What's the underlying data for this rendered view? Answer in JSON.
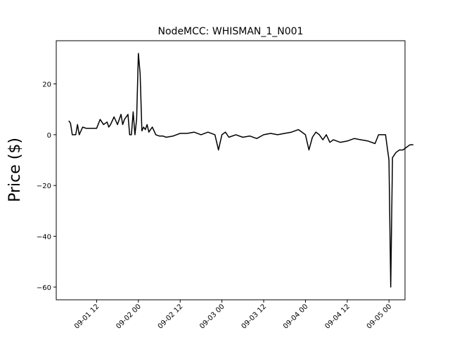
{
  "chart_data": {
    "type": "line",
    "title": "NodeMCC: WHISMAN_1_N001",
    "xlabel": "",
    "ylabel": "Price ($)",
    "x_axis_kind": "datetime",
    "xlim": [
      "2022-09-01 00:24",
      "2022-09-05 04:36"
    ],
    "ylim": [
      -65,
      37
    ],
    "x_ticks": [
      "09-01 12",
      "09-02 00",
      "09-02 12",
      "09-03 00",
      "09-03 12",
      "09-04 00",
      "09-04 12",
      "09-05 00"
    ],
    "y_ticks": [
      20,
      0,
      -20,
      -40,
      -60
    ],
    "y_tick_labels": [
      "20",
      "0",
      "−20",
      "−40",
      "−60"
    ],
    "grid": false,
    "legend": "none",
    "line_color": "#000000",
    "series": [
      {
        "x": [
          "2022-09-01 04:00",
          "2022-09-01 04:30",
          "2022-09-01 05:00",
          "2022-09-01 05:30",
          "2022-09-01 06:00",
          "2022-09-01 06:30",
          "2022-09-01 07:00",
          "2022-09-01 08:00",
          "2022-09-01 09:00",
          "2022-09-01 10:00",
          "2022-09-01 11:00",
          "2022-09-01 12:00",
          "2022-09-01 13:00",
          "2022-09-01 14:00",
          "2022-09-01 15:00",
          "2022-09-01 15:30",
          "2022-09-01 16:00",
          "2022-09-01 17:00",
          "2022-09-01 18:00",
          "2022-09-01 19:00",
          "2022-09-01 19:30",
          "2022-09-01 20:00",
          "2022-09-01 21:00",
          "2022-09-01 21:30",
          "2022-09-01 22:00",
          "2022-09-01 22:30",
          "2022-09-01 23:00",
          "2022-09-01 23:30",
          "2022-09-02 00:00",
          "2022-09-02 00:30",
          "2022-09-02 01:00",
          "2022-09-02 01:30",
          "2022-09-02 02:00",
          "2022-09-02 02:30",
          "2022-09-02 03:00",
          "2022-09-02 03:30",
          "2022-09-02 04:00",
          "2022-09-02 05:00",
          "2022-09-02 06:00",
          "2022-09-02 07:00",
          "2022-09-02 08:00",
          "2022-09-02 10:00",
          "2022-09-02 12:00",
          "2022-09-02 14:00",
          "2022-09-02 16:00",
          "2022-09-02 18:00",
          "2022-09-02 20:00",
          "2022-09-02 22:00",
          "2022-09-02 23:00",
          "2022-09-03 00:00",
          "2022-09-03 01:00",
          "2022-09-03 02:00",
          "2022-09-03 04:00",
          "2022-09-03 06:00",
          "2022-09-03 08:00",
          "2022-09-03 10:00",
          "2022-09-03 12:00",
          "2022-09-03 14:00",
          "2022-09-03 16:00",
          "2022-09-03 18:00",
          "2022-09-03 20:00",
          "2022-09-03 22:00",
          "2022-09-04 00:00",
          "2022-09-04 01:00",
          "2022-09-04 02:00",
          "2022-09-04 03:00",
          "2022-09-04 04:00",
          "2022-09-04 05:00",
          "2022-09-04 06:00",
          "2022-09-04 07:00",
          "2022-09-04 08:00",
          "2022-09-04 10:00",
          "2022-09-04 12:00",
          "2022-09-04 14:00",
          "2022-09-04 16:00",
          "2022-09-04 18:00",
          "2022-09-04 20:00",
          "2022-09-04 21:00",
          "2022-09-04 22:00",
          "2022-09-04 23:00",
          "2022-09-05 00:00",
          "2022-09-05 00:30",
          "2022-09-05 01:00",
          "2022-09-05 01:30",
          "2022-09-05 02:00",
          "2022-09-05 03:00",
          "2022-09-05 04:00",
          "2022-09-05 05:00",
          "2022-09-05 06:00",
          "2022-09-05 07:00"
        ],
        "y": [
          5.5,
          4.5,
          0,
          0,
          0,
          4,
          0,
          3,
          2.5,
          2.5,
          2.5,
          2.5,
          6,
          4,
          5,
          3,
          4,
          7,
          4,
          8,
          4,
          6,
          8,
          0,
          0,
          9,
          0,
          6,
          32,
          24,
          1.5,
          3,
          2,
          4,
          1,
          2,
          3,
          0,
          -0.5,
          -0.5,
          -1,
          -0.5,
          0.5,
          0.5,
          1,
          0,
          1,
          0,
          -6,
          0,
          1,
          -1,
          0,
          -1,
          -0.5,
          -1.5,
          0,
          0.5,
          0,
          0.5,
          1,
          2,
          0,
          -6,
          -1,
          1,
          0,
          -2,
          0,
          -3,
          -2,
          -3,
          -2.5,
          -1.5,
          -2,
          -2.5,
          -3.5,
          0,
          0,
          0,
          -10,
          -60,
          -9,
          -8,
          -7,
          -6,
          -6,
          -5,
          -4,
          -4
        ]
      }
    ]
  }
}
